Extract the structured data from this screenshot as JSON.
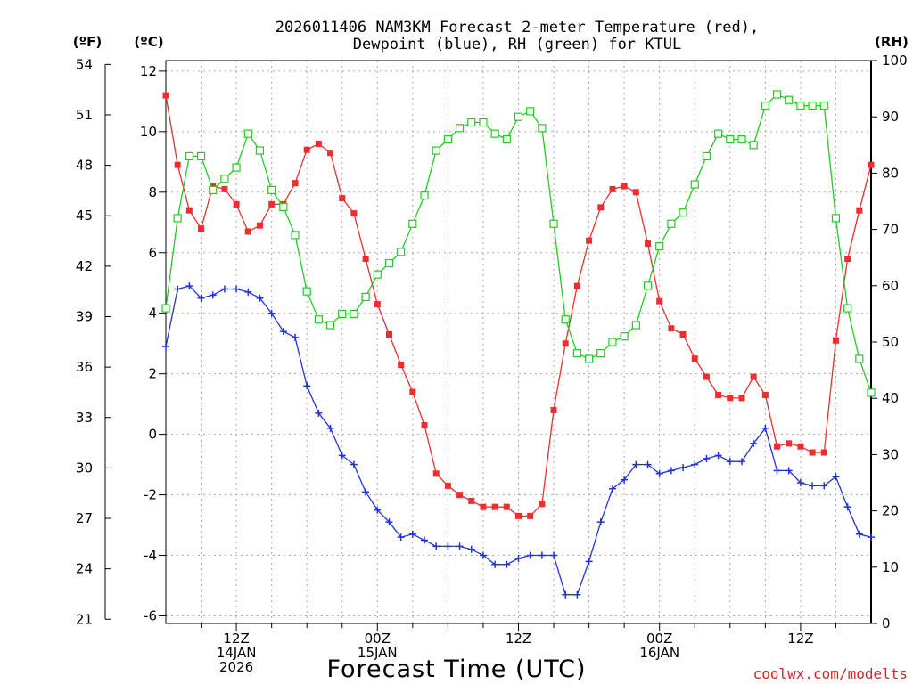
{
  "chart_data": {
    "type": "line",
    "title": [
      "2026011406 NAM3KM Forecast 2-meter Temperature (red),",
      "Dewpoint (blue), RH (green) for KTUL"
    ],
    "xlabel": "Forecast Time (UTC)",
    "credit": "coolwx.com/modelts",
    "units": {
      "fahrenheit": "(ºF)",
      "celsius": "(ºC)",
      "rh": "(RH)"
    },
    "celsius_axis": {
      "ylim": [
        -6.25,
        12.35
      ],
      "ticks": [
        "12",
        "10",
        "8",
        "6",
        "4",
        "2",
        "0",
        "-2",
        "-4",
        "-6"
      ]
    },
    "fahrenheit_axis": {
      "ylim": [
        20.75,
        54.23
      ],
      "ticks": [
        "54",
        "51",
        "48",
        "45",
        "42",
        "39",
        "36",
        "33",
        "30",
        "27",
        "24",
        "21"
      ]
    },
    "rh_axis": {
      "ylim": [
        0,
        100
      ],
      "ticks": [
        "100",
        "90",
        "80",
        "70",
        "60",
        "50",
        "40",
        "30",
        "20",
        "10",
        "0"
      ]
    },
    "x_range_hours": [
      0,
      60
    ],
    "x_ticks": [
      {
        "hour": 6,
        "lines": [
          "12Z",
          "14JAN",
          "2026"
        ]
      },
      {
        "hour": 18,
        "lines": [
          "00Z",
          "15JAN"
        ]
      },
      {
        "hour": 30,
        "lines": [
          "12Z"
        ]
      },
      {
        "hour": 42,
        "lines": [
          "00Z",
          "16JAN"
        ]
      },
      {
        "hour": 54,
        "lines": [
          "12Z"
        ]
      }
    ],
    "grid": true,
    "series": [
      {
        "name": "Temperature",
        "axis": "celsius",
        "color": "#ee2e2e",
        "marker": "filled-square",
        "values": [
          11.2,
          8.9,
          7.4,
          6.8,
          8.2,
          8.1,
          7.6,
          6.7,
          6.9,
          7.6,
          7.6,
          8.3,
          9.4,
          9.6,
          9.3,
          7.8,
          7.3,
          5.8,
          4.3,
          3.3,
          2.3,
          1.4,
          0.3,
          -1.3,
          -1.7,
          -2.0,
          -2.2,
          -2.4,
          -2.4,
          -2.4,
          -2.7,
          -2.7,
          -2.3,
          0.8,
          3.0,
          4.9,
          6.4,
          7.5,
          8.1,
          8.2,
          8.0,
          6.3,
          4.4,
          3.5,
          3.3,
          2.5,
          1.9,
          1.3,
          1.2,
          1.2,
          1.9,
          1.3,
          -0.4,
          -0.3,
          -0.4,
          -0.6,
          -0.6,
          3.1,
          5.8,
          7.4,
          8.9
        ]
      },
      {
        "name": "Dewpoint",
        "axis": "celsius",
        "color": "#2233dd",
        "marker": "plus",
        "values": [
          2.9,
          4.8,
          4.9,
          4.5,
          4.6,
          4.8,
          4.8,
          4.7,
          4.5,
          4.0,
          3.4,
          3.2,
          1.6,
          0.7,
          0.2,
          -0.7,
          -1.0,
          -1.9,
          -2.5,
          -2.9,
          -3.4,
          -3.3,
          -3.5,
          -3.7,
          -3.7,
          -3.7,
          -3.8,
          -4.0,
          -4.3,
          -4.3,
          -4.1,
          -4.0,
          -4.0,
          -4.0,
          -5.3,
          -5.3,
          -4.2,
          -2.9,
          -1.8,
          -1.5,
          -1.0,
          -1.0,
          -1.3,
          -1.2,
          -1.1,
          -1.0,
          -0.8,
          -0.7,
          -0.9,
          -0.9,
          -0.3,
          0.2,
          -1.2,
          -1.2,
          -1.6,
          -1.7,
          -1.7,
          -1.4,
          -2.4,
          -3.3,
          -3.4
        ]
      },
      {
        "name": "RH",
        "axis": "rh",
        "color": "#22cc22",
        "marker": "open-square",
        "values": [
          56,
          72,
          83,
          83,
          77,
          79,
          81,
          87,
          84,
          77,
          74,
          69,
          59,
          54,
          53,
          55,
          55,
          58,
          62,
          64,
          66,
          71,
          76,
          84,
          86,
          88,
          89,
          89,
          87,
          86,
          90,
          91,
          88,
          71,
          54,
          48,
          47,
          48,
          50,
          51,
          53,
          60,
          67,
          71,
          73,
          78,
          83,
          87,
          86,
          86,
          85,
          92,
          94,
          93,
          92,
          92,
          92,
          72,
          56,
          47,
          41
        ]
      }
    ]
  }
}
